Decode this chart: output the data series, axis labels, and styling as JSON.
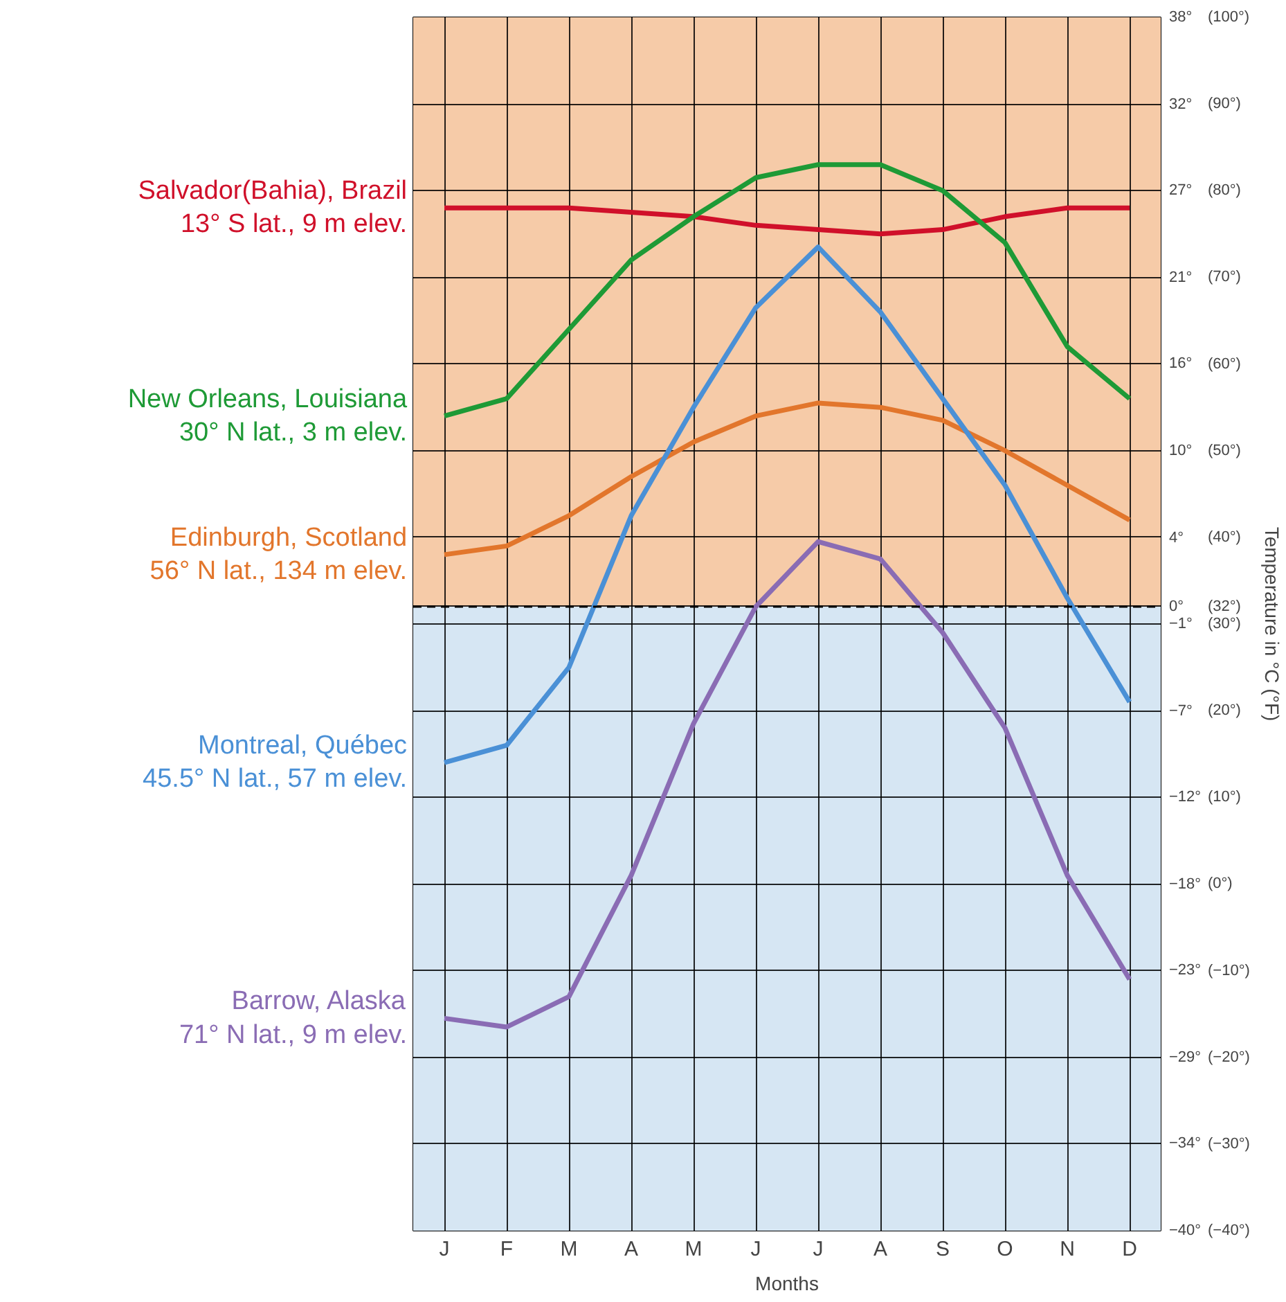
{
  "chart_data": {
    "type": "line",
    "xlabel": "Months",
    "ylabel": "Temperature in °C (°F)",
    "categories": [
      "J",
      "F",
      "M",
      "A",
      "M",
      "J",
      "J",
      "A",
      "S",
      "O",
      "N",
      "D"
    ],
    "ylim": [
      -40,
      100
    ],
    "yticks": [
      {
        "value": 100,
        "label": "(100°)"
      },
      {
        "value": 90,
        "label": "(90°)"
      },
      {
        "value": 80,
        "label": "(80°)"
      },
      {
        "value": 70,
        "label": "(70°)"
      },
      {
        "value": 60,
        "label": "(60°)"
      },
      {
        "value": 50,
        "label": "(50°)"
      },
      {
        "value": 40,
        "label": "(40°)"
      },
      {
        "value": 32,
        "label": "(32°)"
      },
      {
        "value": 30,
        "label": "(30°)"
      },
      {
        "value": 20,
        "label": "(20°)"
      },
      {
        "value": 10,
        "label": "(10°)"
      },
      {
        "value": 0,
        "label": "(0°)"
      },
      {
        "value": -10,
        "label": "(−10°)"
      },
      {
        "value": -20,
        "label": "(−20°)"
      },
      {
        "value": -30,
        "label": "(−30°)"
      },
      {
        "value": -40,
        "label": "(−40°)"
      }
    ],
    "y2lim": [
      -40,
      37.8
    ],
    "y2ticks": [
      {
        "value": 37.8,
        "label": "38°"
      },
      {
        "value": 32.2,
        "label": "32°"
      },
      {
        "value": 26.7,
        "label": "27°"
      },
      {
        "value": 21.1,
        "label": "21°"
      },
      {
        "value": 15.6,
        "label": "16°"
      },
      {
        "value": 10,
        "label": "10°"
      },
      {
        "value": 4.4,
        "label": "4°"
      },
      {
        "value": 0,
        "label": "0°"
      },
      {
        "value": -1.1,
        "label": "−1°"
      },
      {
        "value": -6.7,
        "label": "−7°"
      },
      {
        "value": -12.2,
        "label": "−12°"
      },
      {
        "value": -17.8,
        "label": "−18°"
      },
      {
        "value": -23.3,
        "label": "−23°"
      },
      {
        "value": -28.9,
        "label": "−29°"
      },
      {
        "value": -34.4,
        "label": "−34°"
      },
      {
        "value": -40,
        "label": "−40°"
      }
    ],
    "grid": true,
    "line_style": "solid",
    "marker": "none",
    "ref_lines": [
      {
        "axis": "y",
        "value": 32,
        "line_style": "dashed",
        "color": "#000000"
      }
    ],
    "bands": [
      {
        "axis": "y",
        "from": 32,
        "to": 100,
        "color": "#f6cba8"
      },
      {
        "axis": "y",
        "from": -40,
        "to": 32,
        "color": "#d6e6f3"
      }
    ],
    "series": [
      {
        "name": "Salvador(Bahia), Brazil\n13° S lat., 9 m elev.",
        "color": "#d0102a",
        "values": [
          78,
          78,
          78,
          77.5,
          77,
          76,
          75.5,
          75,
          75.5,
          77,
          78,
          78
        ]
      },
      {
        "name": "New Orleans, Louisiana\n30° N lat., 3 m elev.",
        "color": "#1e9a36",
        "values": [
          54,
          56,
          64,
          72,
          77,
          81.5,
          83,
          83,
          80,
          74,
          62,
          56
        ]
      },
      {
        "name": "Edinburgh, Scotland\n56° N lat., 134 m elev.",
        "color": "#e2762c",
        "values": [
          38,
          39,
          42.5,
          47,
          51,
          54,
          55.5,
          55,
          53.5,
          50,
          46,
          42
        ]
      },
      {
        "name": "Montreal, Québec\n45.5° N lat., 57 m elev.",
        "color": "#4a90d6",
        "values": [
          14,
          16,
          25,
          42.5,
          55,
          66.5,
          73.5,
          66,
          56,
          46,
          33,
          21
        ]
      },
      {
        "name": "Barrow, Alaska\n71° N lat., 9 m elev.",
        "color": "#8a6cb4",
        "values": [
          -15.5,
          -16.5,
          -13,
          1,
          18.5,
          32,
          39.5,
          37.5,
          29,
          18,
          1,
          -11
        ]
      }
    ]
  }
}
